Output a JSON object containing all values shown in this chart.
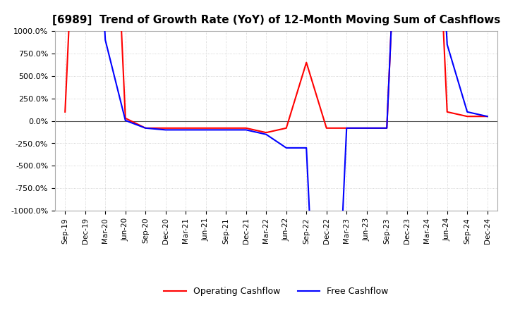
{
  "title": "[6989]  Trend of Growth Rate (YoY) of 12-Month Moving Sum of Cashflows",
  "ylim": [
    -1000,
    1000
  ],
  "yticks": [
    1000.0,
    750.0,
    500.0,
    250.0,
    0.0,
    -250.0,
    -500.0,
    -750.0,
    -1000.0
  ],
  "operating_color": "#ff0000",
  "free_color": "#0000ff",
  "legend_labels": [
    "Operating Cashflow",
    "Free Cashflow"
  ],
  "grid_color": "#c8c8c8",
  "background_color": "#ffffff",
  "x_labels": [
    "Sep-19",
    "Dec-19",
    "Mar-20",
    "Jun-20",
    "Sep-20",
    "Dec-20",
    "Mar-21",
    "Jun-21",
    "Sep-21",
    "Dec-21",
    "Mar-22",
    "Jun-22",
    "Sep-22",
    "Dec-22",
    "Mar-23",
    "Jun-23",
    "Sep-23",
    "Dec-23",
    "Mar-24",
    "Jun-24",
    "Sep-24",
    "Dec-24"
  ],
  "operating_cashflow": [
    100,
    5000,
    5000,
    30,
    -80,
    -80,
    -80,
    -80,
    -80,
    -80,
    -130,
    -80,
    650,
    -80,
    -80,
    -80,
    -80,
    5000,
    5000,
    100,
    50,
    50
  ],
  "free_cashflow": [
    5000,
    5000,
    900,
    5,
    -80,
    -100,
    -100,
    -100,
    -100,
    -100,
    -150,
    -300,
    -300,
    -5000,
    -80,
    -80,
    -80,
    5000,
    5000,
    850,
    100,
    50
  ]
}
